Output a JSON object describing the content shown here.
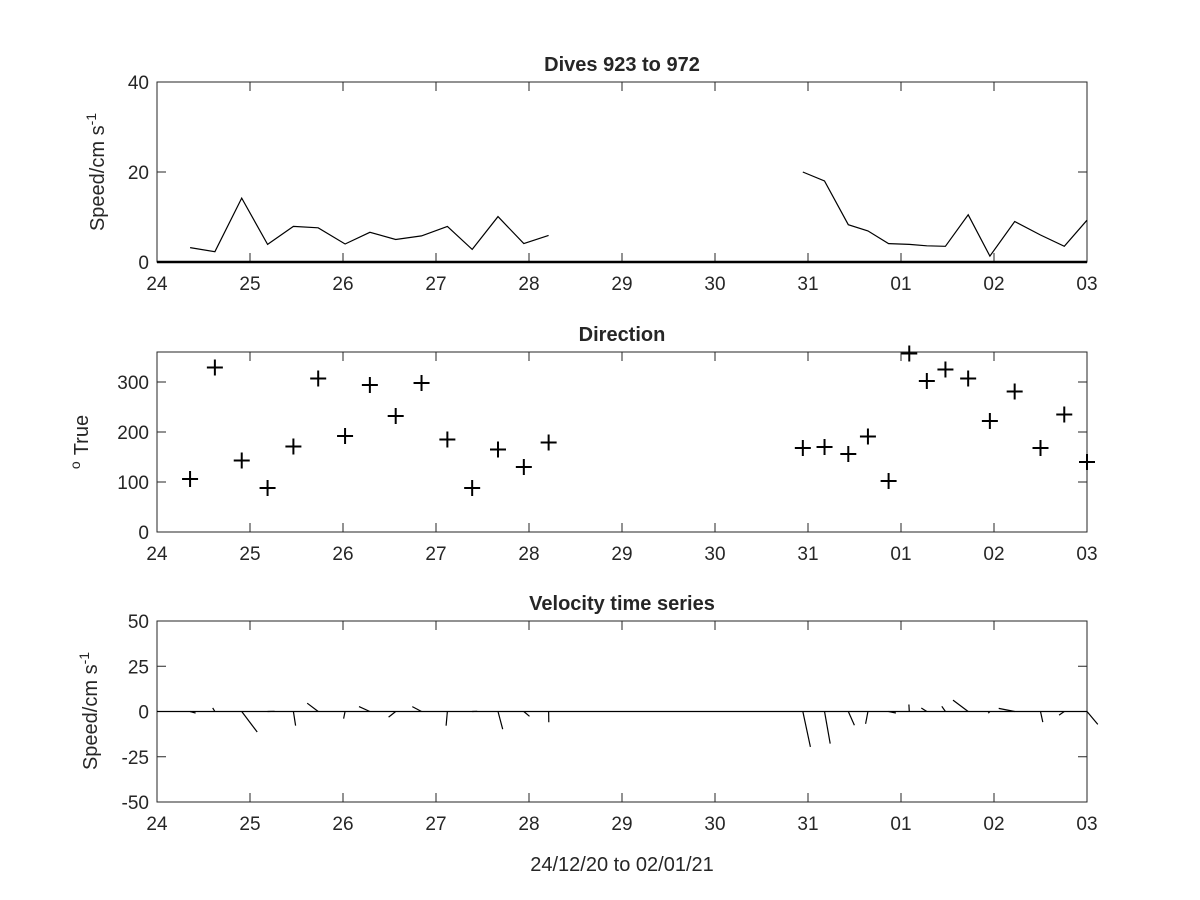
{
  "xlabel": "24/12/20 to 02/01/21",
  "chart_data": [
    {
      "type": "line",
      "title": "Dives 923 to 972",
      "ylabel": "Speed/cm s",
      "ylabel_superscript": "-1",
      "xlim": [
        0,
        9
      ],
      "ylim": [
        0,
        40
      ],
      "yticks": [
        0,
        20,
        40
      ],
      "xticks": [
        "24",
        "25",
        "26",
        "27",
        "28",
        "29",
        "30",
        "31",
        "01",
        "02",
        "03"
      ],
      "baseline": 0,
      "segments": [
        {
          "x": [
            0.32,
            0.56,
            0.82,
            1.07,
            1.32,
            1.56,
            1.82,
            2.06,
            2.31,
            2.56,
            2.81,
            3.05,
            3.3,
            3.55,
            3.79
          ],
          "y": [
            3.2,
            2.3,
            14.2,
            3.9,
            7.9,
            7.6,
            4.0,
            6.6,
            5.0,
            5.8,
            7.9,
            2.8,
            10.1,
            4.1,
            5.9
          ]
        },
        {
          "x": [
            6.25,
            6.46,
            6.69,
            6.88,
            7.08,
            7.28,
            7.45,
            7.63,
            7.85,
            8.06,
            8.3,
            8.55,
            8.78,
            9.0
          ],
          "y": [
            20.0,
            18.0,
            8.3,
            6.9,
            4.1,
            3.9,
            3.6,
            3.5,
            10.5,
            1.3,
            9.0,
            6.0,
            3.5,
            9.3
          ]
        }
      ]
    },
    {
      "type": "scatter",
      "title": "Direction",
      "ylabel": "True",
      "ylabel_superscript": "o",
      "xlim": [
        0,
        9
      ],
      "ylim": [
        0,
        360
      ],
      "yticks": [
        0,
        100,
        200,
        300
      ],
      "xticks": [
        "24",
        "25",
        "26",
        "27",
        "28",
        "29",
        "30",
        "31",
        "01",
        "02",
        "03"
      ],
      "marker": "+",
      "x": [
        0.32,
        0.56,
        0.82,
        1.07,
        1.32,
        1.56,
        1.82,
        2.06,
        2.31,
        2.56,
        2.81,
        3.05,
        3.3,
        3.55,
        3.79,
        6.25,
        6.46,
        6.69,
        6.88,
        7.08,
        7.28,
        7.45,
        7.63,
        7.85,
        8.06,
        8.3,
        8.55,
        8.78,
        9.0
      ],
      "y": [
        106,
        329,
        143,
        88,
        171,
        307,
        192,
        294,
        232,
        298,
        185,
        88,
        165,
        130,
        179,
        168,
        170,
        156,
        191,
        102,
        357,
        302,
        325,
        307,
        222,
        281,
        168,
        235,
        140
      ]
    },
    {
      "type": "quiver",
      "title": "Velocity time series",
      "ylabel": "Speed/cm s",
      "ylabel_superscript": "-1",
      "xlim": [
        0,
        9
      ],
      "ylim": [
        -50,
        50
      ],
      "yticks": [
        50,
        25,
        0,
        -25,
        -50
      ],
      "xticks": [
        "24",
        "25",
        "26",
        "27",
        "28",
        "29",
        "30",
        "31",
        "01",
        "02",
        "03"
      ],
      "zero_line": true,
      "note": "stick directions follow the Direction panel; lengths follow the Speed panel",
      "x": [
        0.32,
        0.56,
        0.82,
        1.07,
        1.32,
        1.56,
        1.82,
        2.06,
        2.31,
        2.56,
        2.81,
        3.05,
        3.3,
        3.55,
        3.79,
        6.25,
        6.46,
        6.69,
        6.88,
        7.08,
        7.28,
        7.45,
        7.63,
        7.85,
        8.06,
        8.3,
        8.55,
        8.78,
        9.0
      ],
      "speed": [
        3.2,
        2.3,
        14.2,
        3.9,
        7.9,
        7.6,
        4.0,
        6.6,
        5.0,
        5.8,
        7.9,
        2.8,
        10.1,
        4.1,
        5.9,
        20.0,
        18.0,
        8.3,
        6.9,
        4.1,
        3.9,
        3.6,
        3.5,
        10.5,
        1.3,
        9.0,
        6.0,
        3.5,
        9.3
      ],
      "direction": [
        106,
        329,
        143,
        88,
        171,
        307,
        192,
        294,
        232,
        298,
        185,
        88,
        165,
        130,
        179,
        168,
        170,
        156,
        191,
        102,
        357,
        302,
        325,
        307,
        222,
        281,
        168,
        235,
        140
      ]
    }
  ]
}
